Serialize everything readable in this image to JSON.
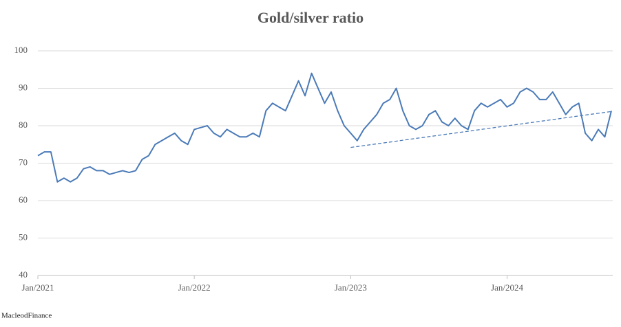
{
  "chart_data": {
    "type": "line",
    "title": "Gold/silver ratio",
    "source": "MacleodFinance",
    "categories": [
      "Jan/2021",
      null,
      null,
      null,
      null,
      null,
      null,
      null,
      null,
      null,
      null,
      null,
      null,
      null,
      null,
      null,
      null,
      null,
      null,
      null,
      null,
      null,
      null,
      null,
      "Jan/2022",
      null,
      null,
      null,
      null,
      null,
      null,
      null,
      null,
      null,
      null,
      null,
      null,
      null,
      null,
      null,
      null,
      null,
      null,
      null,
      null,
      null,
      null,
      null,
      "Jan/2023",
      null,
      null,
      null,
      null,
      null,
      null,
      null,
      null,
      null,
      null,
      null,
      null,
      null,
      null,
      null,
      null,
      null,
      null,
      null,
      null,
      null,
      null,
      null,
      "Jan/2024",
      null,
      null,
      null,
      null,
      null,
      null,
      null,
      null,
      null,
      null,
      null,
      null,
      null,
      null,
      null,
      null
    ],
    "series": [
      {
        "color": "#4a7ab8",
        "values": [
          72,
          73,
          73,
          65,
          66,
          65,
          66,
          68.5,
          69,
          68,
          68,
          67,
          67.5,
          68,
          67.5,
          68,
          71,
          72,
          75,
          76,
          77,
          78,
          76,
          75,
          79,
          79.5,
          80,
          78,
          77,
          79,
          78,
          77,
          77,
          78,
          77,
          84,
          86,
          85,
          84,
          88,
          92,
          88,
          94,
          90,
          86,
          89,
          84,
          80,
          78,
          76,
          79,
          81,
          83,
          86,
          87,
          90,
          84,
          80,
          79,
          80,
          83,
          84,
          81,
          80,
          82,
          80,
          79,
          84,
          86,
          85,
          86,
          87,
          85,
          86,
          89,
          90,
          89,
          87,
          87,
          89,
          86,
          83,
          85,
          86,
          78,
          76,
          79,
          77,
          84
        ]
      },
      {
        "color": "#4a7ab8",
        "dash": true,
        "values": [
          null,
          null,
          null,
          null,
          null,
          null,
          null,
          null,
          null,
          null,
          null,
          null,
          null,
          null,
          null,
          null,
          null,
          null,
          null,
          null,
          null,
          null,
          null,
          null,
          null,
          null,
          null,
          null,
          null,
          null,
          null,
          null,
          null,
          null,
          null,
          null,
          null,
          null,
          null,
          null,
          null,
          null,
          null,
          null,
          null,
          null,
          null,
          null,
          74.2,
          74.44,
          74.68,
          74.92,
          75.16,
          75.4,
          75.64,
          75.88,
          76.12,
          76.36,
          76.6,
          76.84,
          77.08,
          77.32,
          77.56,
          77.8,
          78.04,
          78.28,
          78.52,
          78.76,
          79.0,
          79.24,
          79.48,
          79.72,
          79.96,
          80.2,
          80.44,
          80.68,
          80.92,
          81.16,
          81.4,
          81.64,
          81.88,
          82.12,
          82.36,
          82.6,
          82.84,
          83.08,
          83.32,
          83.56,
          83.8
        ]
      }
    ],
    "ylim": [
      40,
      100
    ],
    "yticks": [
      40,
      50,
      60,
      70,
      80,
      90,
      100
    ],
    "grid": true
  }
}
